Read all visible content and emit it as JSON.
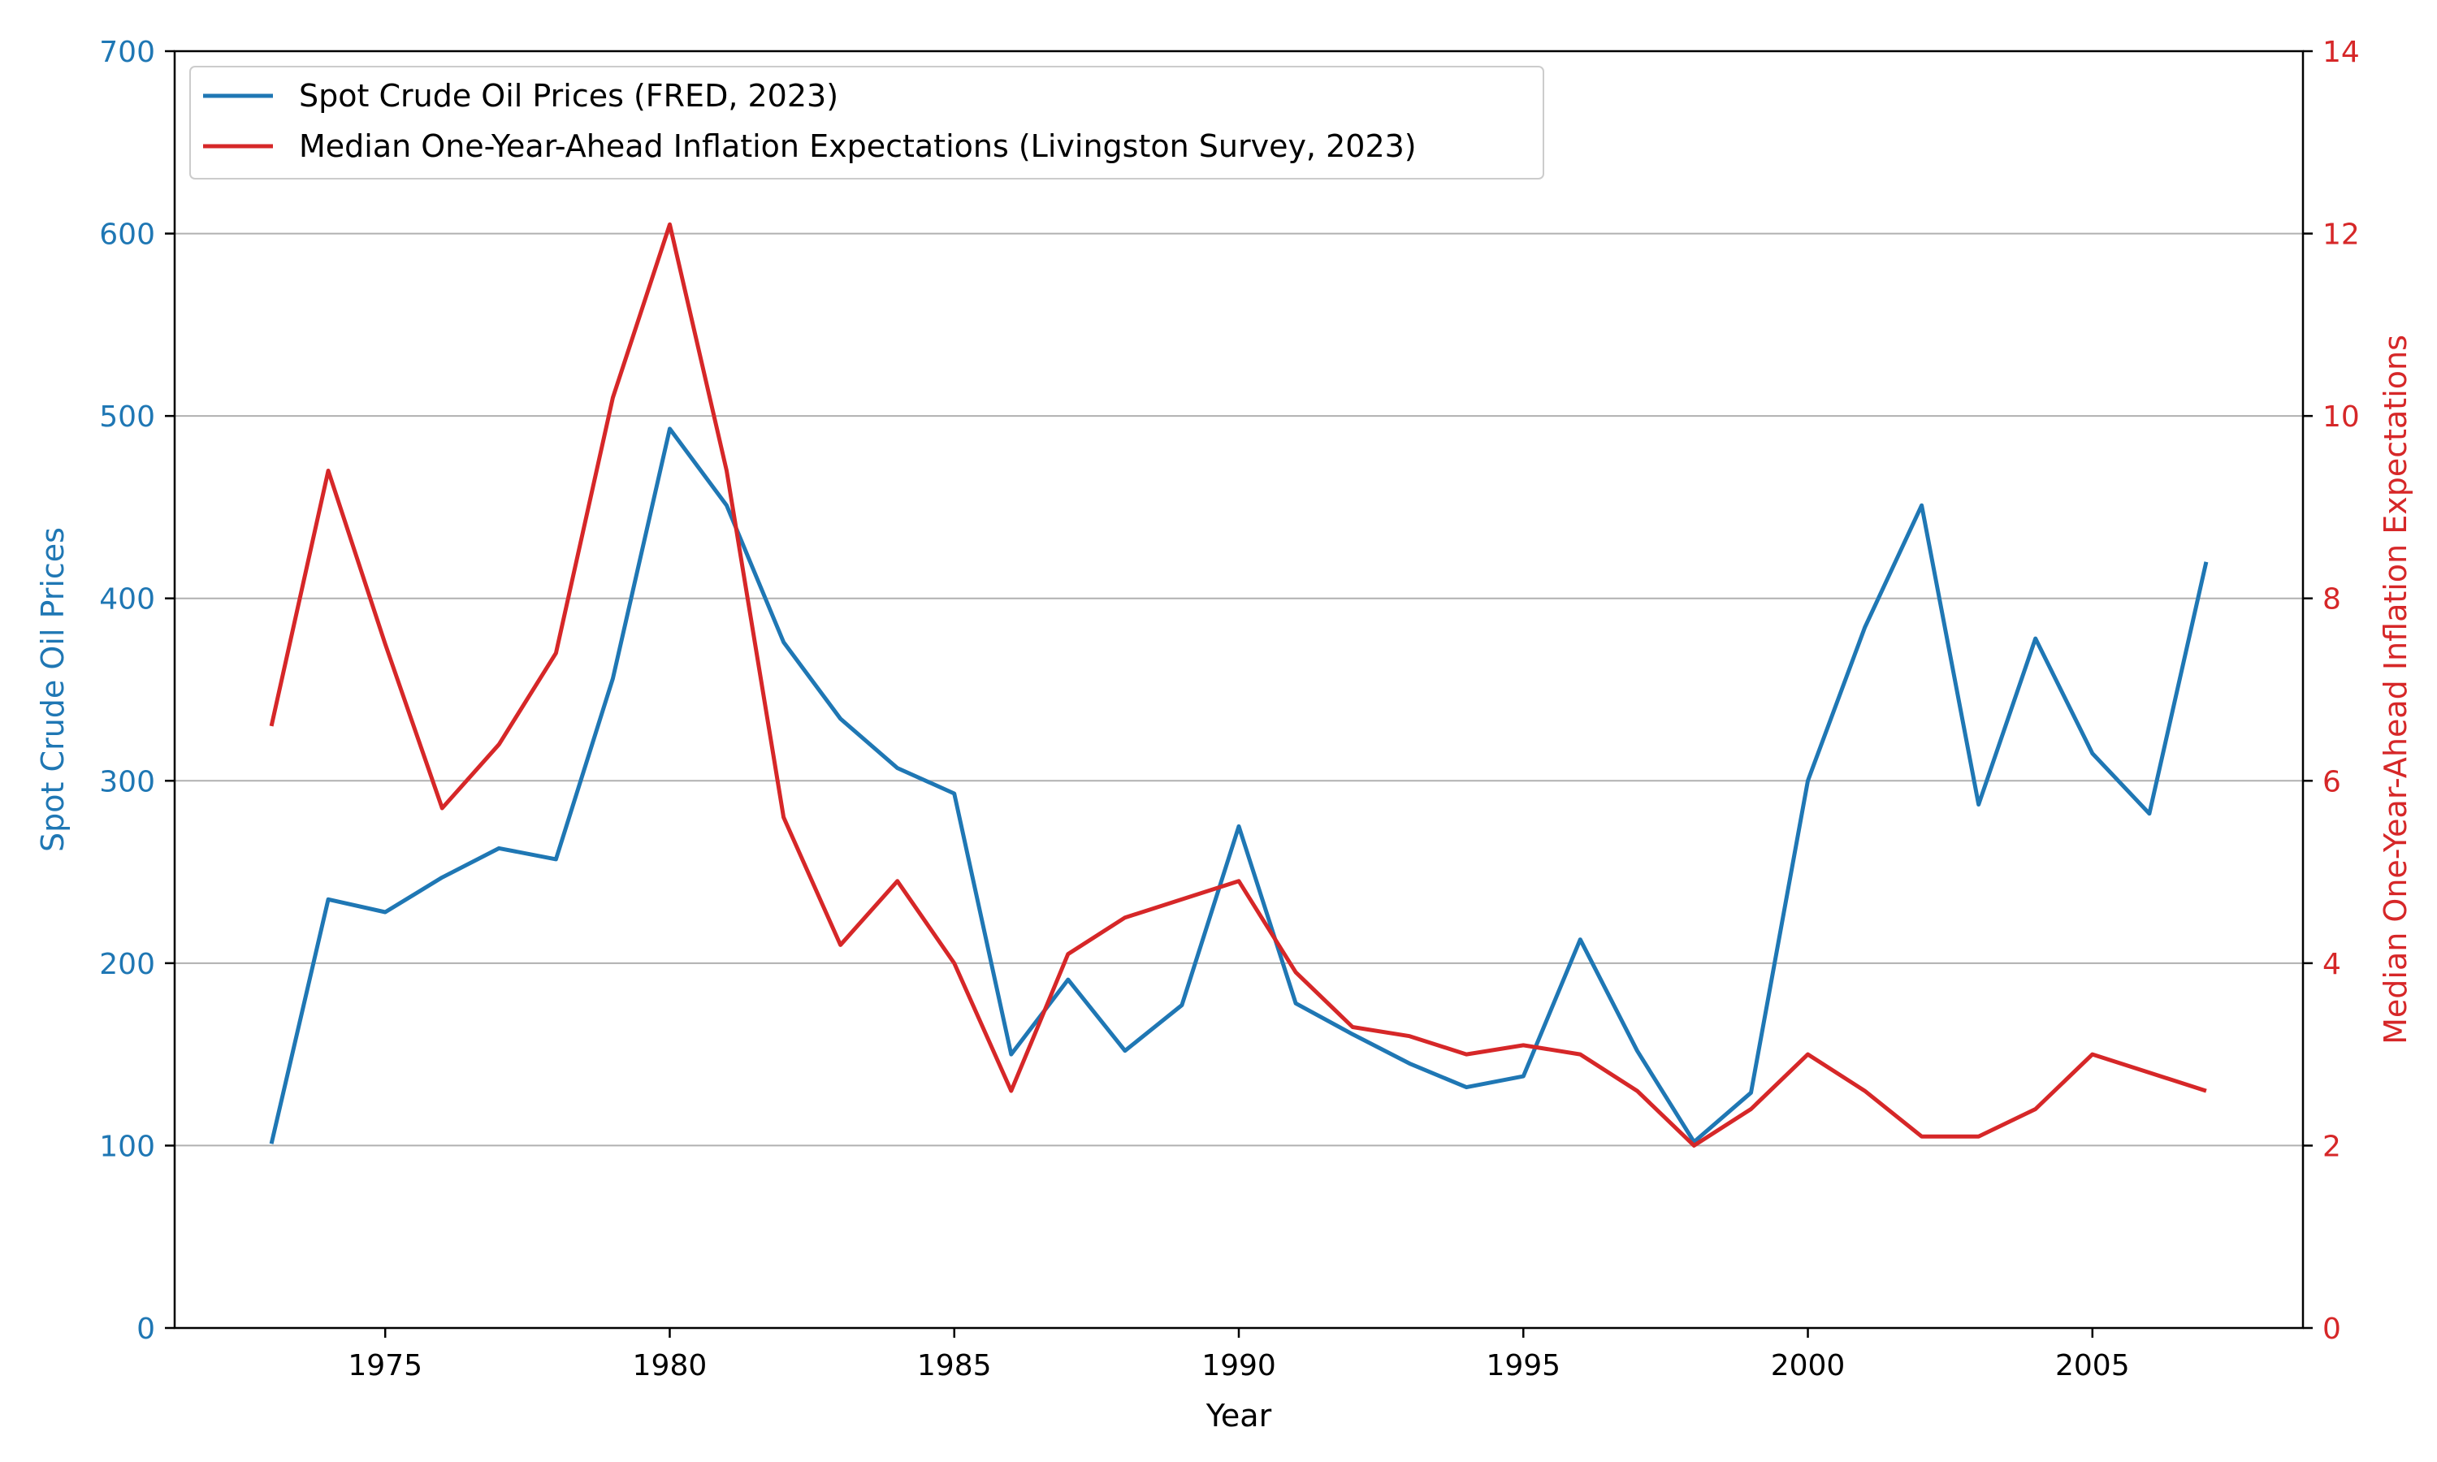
{
  "chart_data": {
    "type": "line",
    "xlabel": "Year",
    "ylabel_left": "Spot Crude Oil Prices",
    "ylabel_right": "Median One-Year-Ahead Inflation Expectations",
    "xlim": [
      1971.3,
      2008.7
    ],
    "ylim_left": [
      0,
      700
    ],
    "ylim_right": [
      0,
      14
    ],
    "x_ticks": [
      "1975",
      "1980",
      "1985",
      "1990",
      "1995",
      "2000",
      "2005"
    ],
    "y_ticks_left": [
      "0",
      "100",
      "200",
      "300",
      "400",
      "500",
      "600",
      "700"
    ],
    "y_ticks_right": [
      "0",
      "2",
      "4",
      "6",
      "8",
      "10",
      "12",
      "14"
    ],
    "grid": "horizontal (left axis)",
    "legend_position": "top-left",
    "colors": {
      "oil": "#1f77b4",
      "inflation": "#d62728",
      "axis": "#000000",
      "grid": "#b0b0b0"
    },
    "x": [
      1973,
      1974,
      1975,
      1976,
      1977,
      1978,
      1979,
      1980,
      1981,
      1982,
      1983,
      1984,
      1985,
      1986,
      1987,
      1988,
      1989,
      1990,
      1991,
      1992,
      1993,
      1994,
      1995,
      1996,
      1997,
      1998,
      1999,
      2000,
      2001,
      2002,
      2003,
      2004,
      2005,
      2006,
      2007
    ],
    "series": [
      {
        "name": "Spot Crude Oil Prices (FRED, 2023)",
        "axis": "left",
        "values": [
          101,
          235,
          228,
          247,
          263,
          257,
          356,
          493,
          451,
          376,
          334,
          307,
          293,
          150,
          191,
          152,
          177,
          275,
          178,
          161,
          145,
          132,
          138,
          213,
          152,
          102,
          129,
          300,
          384,
          451,
          287,
          378,
          315,
          282,
          420
        ]
      },
      {
        "name": "Median One-Year-Ahead Inflation Expectations (Livingston Survey, 2023)",
        "axis": "right",
        "values": [
          6.6,
          9.4,
          7.5,
          5.7,
          6.4,
          7.4,
          10.2,
          12.1,
          9.4,
          5.6,
          4.2,
          4.9,
          4.0,
          2.6,
          4.1,
          4.5,
          4.7,
          4.9,
          3.9,
          3.3,
          3.2,
          3.0,
          3.1,
          3.0,
          2.6,
          2.0,
          2.4,
          3.0,
          2.6,
          2.1,
          2.1,
          2.4,
          3.0,
          2.8,
          2.6
        ]
      }
    ]
  }
}
